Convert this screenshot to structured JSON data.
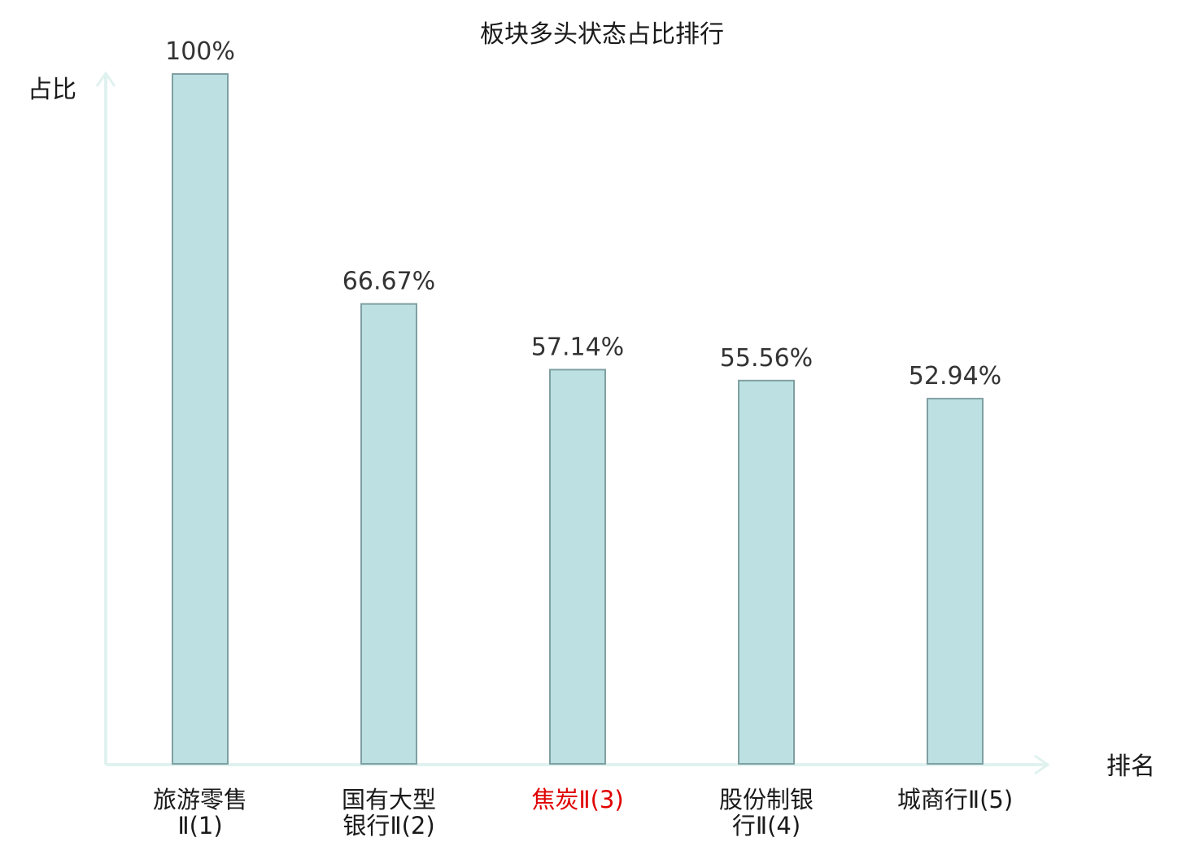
{
  "chart_data": {
    "type": "bar",
    "title": "板块多头状态占比排行",
    "ylabel": "占比",
    "xlabel": "排名",
    "ylim": [
      0,
      100
    ],
    "grid": false,
    "categories": [
      [
        "旅游零售",
        "Ⅱ(1)"
      ],
      [
        "国有大型",
        "银行Ⅱ(2)"
      ],
      [
        "焦炭Ⅱ(3)"
      ],
      [
        "股份制银",
        "行Ⅱ(4)"
      ],
      [
        "城商行Ⅱ(5)"
      ]
    ],
    "values": [
      100,
      66.67,
      57.14,
      55.56,
      52.94
    ],
    "value_labels": [
      "100%",
      "66.67%",
      "57.14%",
      "55.56%",
      "52.94%"
    ],
    "highlight_index": 2,
    "colors": {
      "bar_fill": "#bde0e2",
      "bar_stroke": "#7fa0a2",
      "axis": "#e0f2ef",
      "highlight_text": "#e00000",
      "text": "#1a1a1a"
    }
  }
}
